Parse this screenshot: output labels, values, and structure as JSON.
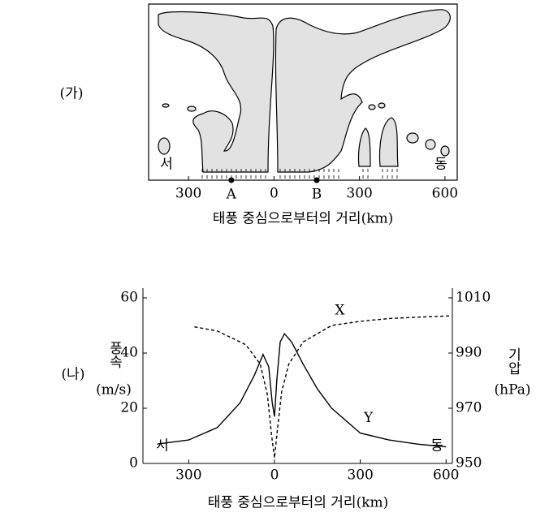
{
  "chart_data": [
    {
      "type": "cross-section",
      "panel_label": "(가)",
      "xlabel": "태풍 중심으로부터의 거리(km)",
      "west_label": "서",
      "east_label": "동",
      "xlim": [
        -440,
        643
      ],
      "xticks": [
        {
          "value": -300,
          "label": "300"
        },
        0,
        300,
        600
      ],
      "points": [
        {
          "label": "A",
          "x": -150
        },
        {
          "label": "B",
          "x": 150
        }
      ]
    },
    {
      "type": "line",
      "panel_label": "(나)",
      "xlabel": "태풍 중심으로부터의 거리(km)",
      "ylabel": "풍속",
      "ylabel_unit": "(m/s)",
      "y2label": "기압",
      "y2label_unit": "(hPa)",
      "west_label": "서",
      "east_label": "동",
      "xlim": [
        -460,
        622
      ],
      "ylim": [
        0,
        60
      ],
      "y2lim": [
        950,
        1010
      ],
      "xticks": [
        {
          "value": -300,
          "label": "300"
        },
        0,
        300,
        600
      ],
      "yticks": [
        0,
        20,
        40,
        60
      ],
      "y2ticks": [
        950,
        970,
        990,
        1010
      ],
      "series": [
        {
          "name": "X",
          "axis": "y2",
          "dash": true,
          "color": "#000000",
          "x": [
            -280,
            -200,
            -100,
            -50,
            -25,
            -10,
            0,
            10,
            25,
            50,
            100,
            200,
            300,
            400,
            500,
            620
          ],
          "values": [
            999.5,
            998,
            993,
            986,
            975,
            960,
            952,
            962,
            976,
            986,
            994,
            1000,
            1001.5,
            1002.5,
            1003,
            1003.5
          ]
        },
        {
          "name": "Y",
          "dash": false,
          "color": "#000000",
          "x": [
            -410,
            -300,
            -200,
            -120,
            -70,
            -40,
            -20,
            -8,
            0,
            8,
            20,
            35,
            60,
            100,
            150,
            200,
            300,
            400,
            500,
            600
          ],
          "values": [
            7,
            8.5,
            13,
            22,
            32,
            39.5,
            35,
            22,
            17,
            30,
            44,
            47,
            44,
            36,
            27,
            20,
            11,
            8.5,
            7,
            6
          ]
        }
      ]
    }
  ]
}
